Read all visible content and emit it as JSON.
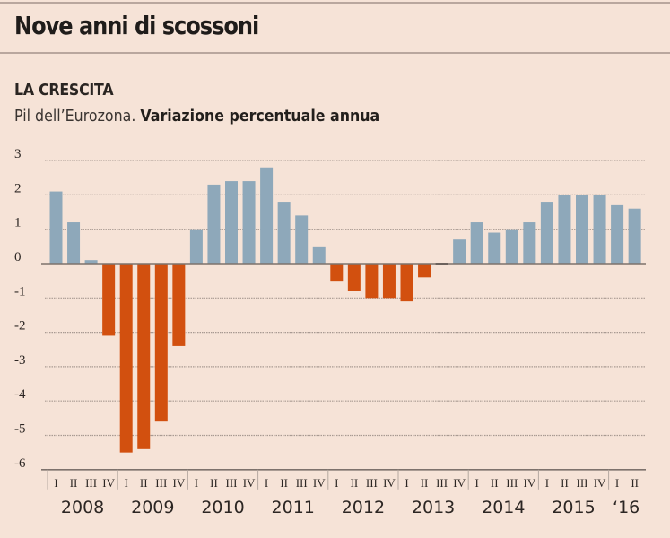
{
  "header": {
    "headline": "Nove anni di scossoni",
    "section_title": "LA CRESCITA",
    "subtitle_plain": "Pil dell’Eurozona. ",
    "subtitle_bold": "Variazione percentuale annua"
  },
  "colors": {
    "background": "#f6e3d7",
    "positive_bar": "#8ea8ba",
    "negative_bar": "#d2500f",
    "zero_bar": "#3a3430",
    "gridline": "#a89a92",
    "axis": "#7d726c"
  },
  "chart_data": {
    "type": "bar",
    "title": "LA CRESCITA",
    "subtitle": "Pil dell’Eurozona. Variazione percentuale annua",
    "xlabel": "",
    "ylabel": "",
    "ylim": [
      -6,
      3
    ],
    "yticks": [
      3,
      2,
      1,
      0,
      -1,
      -2,
      -3,
      -4,
      -5,
      -6
    ],
    "ytick_labels": [
      "3",
      "2",
      "1",
      "0",
      "-1",
      "-2",
      "-3",
      "-4",
      "-5",
      "-6"
    ],
    "grid": true,
    "legend": "none",
    "quarter_labels": [
      "I",
      "II",
      "III",
      "IV"
    ],
    "years": [
      {
        "label": "2008",
        "quarters": 4
      },
      {
        "label": "2009",
        "quarters": 4
      },
      {
        "label": "2010",
        "quarters": 4
      },
      {
        "label": "2011",
        "quarters": 4
      },
      {
        "label": "2012",
        "quarters": 4
      },
      {
        "label": "2013",
        "quarters": 4
      },
      {
        "label": "2014",
        "quarters": 4
      },
      {
        "label": "2015",
        "quarters": 4
      },
      {
        "label": "‘16",
        "quarters": 2
      }
    ],
    "categories": [
      "2008 I",
      "2008 II",
      "2008 III",
      "2008 IV",
      "2009 I",
      "2009 II",
      "2009 III",
      "2009 IV",
      "2010 I",
      "2010 II",
      "2010 III",
      "2010 IV",
      "2011 I",
      "2011 II",
      "2011 III",
      "2011 IV",
      "2012 I",
      "2012 II",
      "2012 III",
      "2012 IV",
      "2013 I",
      "2013 II",
      "2013 III",
      "2013 IV",
      "2014 I",
      "2014 II",
      "2014 III",
      "2014 IV",
      "2015 I",
      "2015 II",
      "2015 III",
      "2015 IV",
      "2016 I",
      "2016 II"
    ],
    "values": [
      2.1,
      1.2,
      0.1,
      -2.1,
      -5.5,
      -5.4,
      -4.6,
      -2.4,
      1.0,
      2.3,
      2.4,
      2.4,
      2.8,
      1.8,
      1.4,
      0.5,
      -0.5,
      -0.8,
      -1.0,
      -1.0,
      -1.1,
      -0.4,
      0.0,
      0.7,
      1.2,
      0.9,
      1.0,
      1.2,
      1.8,
      2.0,
      2.0,
      2.0,
      1.7,
      1.6
    ]
  }
}
